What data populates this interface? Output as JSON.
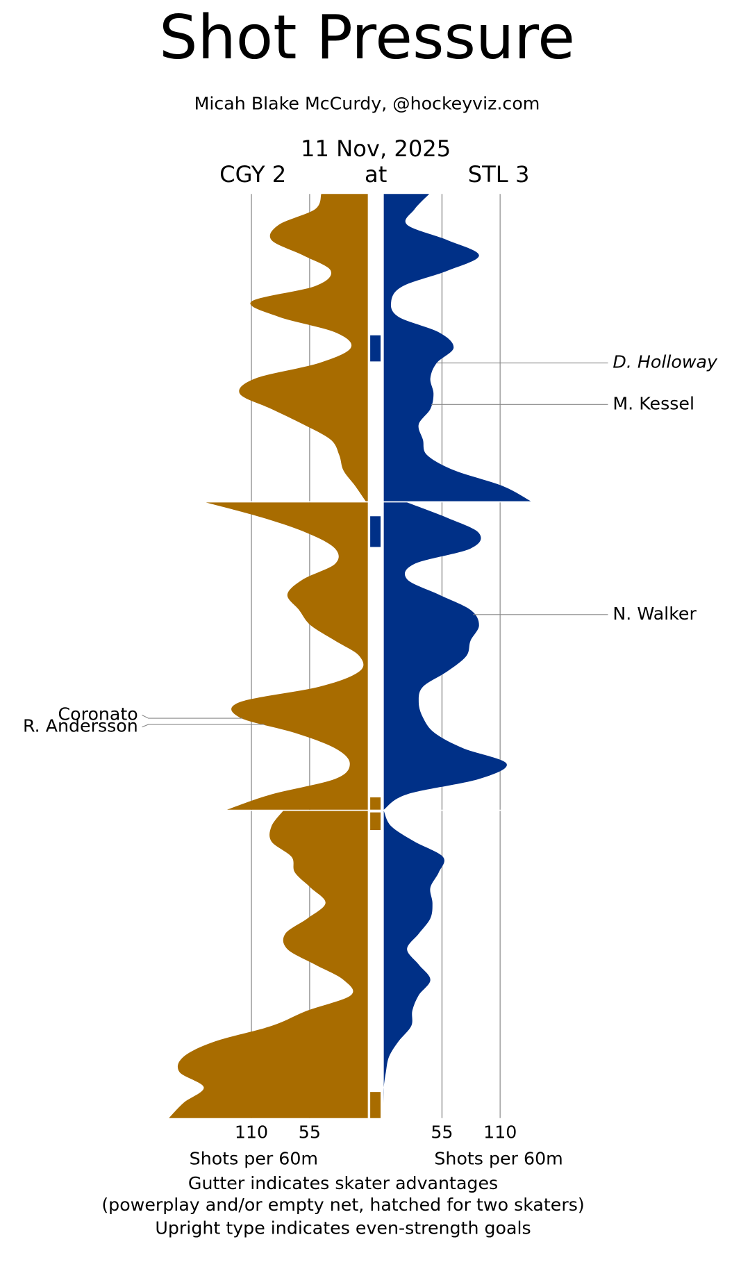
{
  "chart_data": {
    "type": "shot-pressure",
    "title": "Shot Pressure",
    "subtitle": "Micah Blake McCurdy, @hockeyviz.com",
    "date": "11 Nov, 2025",
    "at": "at",
    "xlabel": "Shots per 60m",
    "xlim": [
      0,
      190
    ],
    "xticks": [
      55,
      110
    ],
    "ylim": [
      0,
      20
    ],
    "x": [
      0,
      1,
      2,
      3,
      4,
      5,
      6,
      7,
      8,
      9,
      10,
      11,
      12,
      13,
      14,
      15,
      16,
      17,
      18,
      19,
      20
    ],
    "series": [
      {
        "name": "CGY 2",
        "color": "#a86c00",
        "values": [
          [
            44,
            50,
            84,
            91,
            61,
            35,
            50,
            110,
            84,
            31,
            16,
            46,
            106,
            121,
            91,
            61,
            35,
            27,
            23,
            12,
            2
          ],
          [
            153,
            99,
            57,
            31,
            31,
            61,
            76,
            65,
            54,
            31,
            8,
            8,
            46,
            121,
            121,
            69,
            31,
            17,
            31,
            91,
            133
          ],
          [
            80,
            91,
            91,
            72,
            69,
            54,
            40,
            57,
            78,
            76,
            50,
            23,
            16,
            57,
            91,
            144,
            174,
            178,
            155,
            174,
            188
          ]
        ]
      },
      {
        "name": "STL 3",
        "color": "#003087",
        "values": [
          [
            43,
            29,
            22,
            60,
            90,
            60,
            18,
            7,
            14,
            52,
            66,
            50,
            44,
            47,
            44,
            33,
            37,
            41,
            67,
            112,
            139
          ],
          [
            22,
            60,
            90,
            82,
            29,
            22,
            52,
            82,
            90,
            82,
            78,
            60,
            37,
            33,
            37,
            48,
            75,
            116,
            90,
            22,
            0
          ],
          [
            0,
            7,
            29,
            56,
            52,
            44,
            46,
            44,
            33,
            22,
            33,
            44,
            33,
            27,
            26,
            14,
            5,
            2,
            0,
            0,
            0
          ]
        ]
      }
    ],
    "advantages": [
      {
        "team": 1,
        "period": 1,
        "start": 9.2,
        "end": 10.9
      },
      {
        "team": 1,
        "period": 2,
        "start": 0.9,
        "end": 2.9
      },
      {
        "team": 0,
        "period": 2,
        "start": 19.2,
        "end": 20
      },
      {
        "team": 0,
        "period": 3,
        "start": 0.1,
        "end": 1.25
      },
      {
        "team": 0,
        "period": 3,
        "start": 18.3,
        "end": 20
      }
    ],
    "goals": [
      {
        "player": "D. Holloway",
        "team": 1,
        "period": 1,
        "minute": 11.0,
        "even_strength": false
      },
      {
        "player": "M. Kessel",
        "team": 1,
        "period": 1,
        "minute": 13.7,
        "even_strength": true
      },
      {
        "player": "N. Walker",
        "team": 1,
        "period": 2,
        "minute": 7.3,
        "even_strength": true
      },
      {
        "player": "Coronato",
        "team": 0,
        "period": 2,
        "minute": 14.05,
        "even_strength": true
      },
      {
        "player": "R. Andersson",
        "team": 0,
        "period": 2,
        "minute": 14.45,
        "even_strength": true
      }
    ],
    "notes": [
      "Gutter indicates skater advantages",
      "(powerplay and/or empty net, hatched for two skaters)",
      "Upright type indicates even-strength goals"
    ]
  }
}
